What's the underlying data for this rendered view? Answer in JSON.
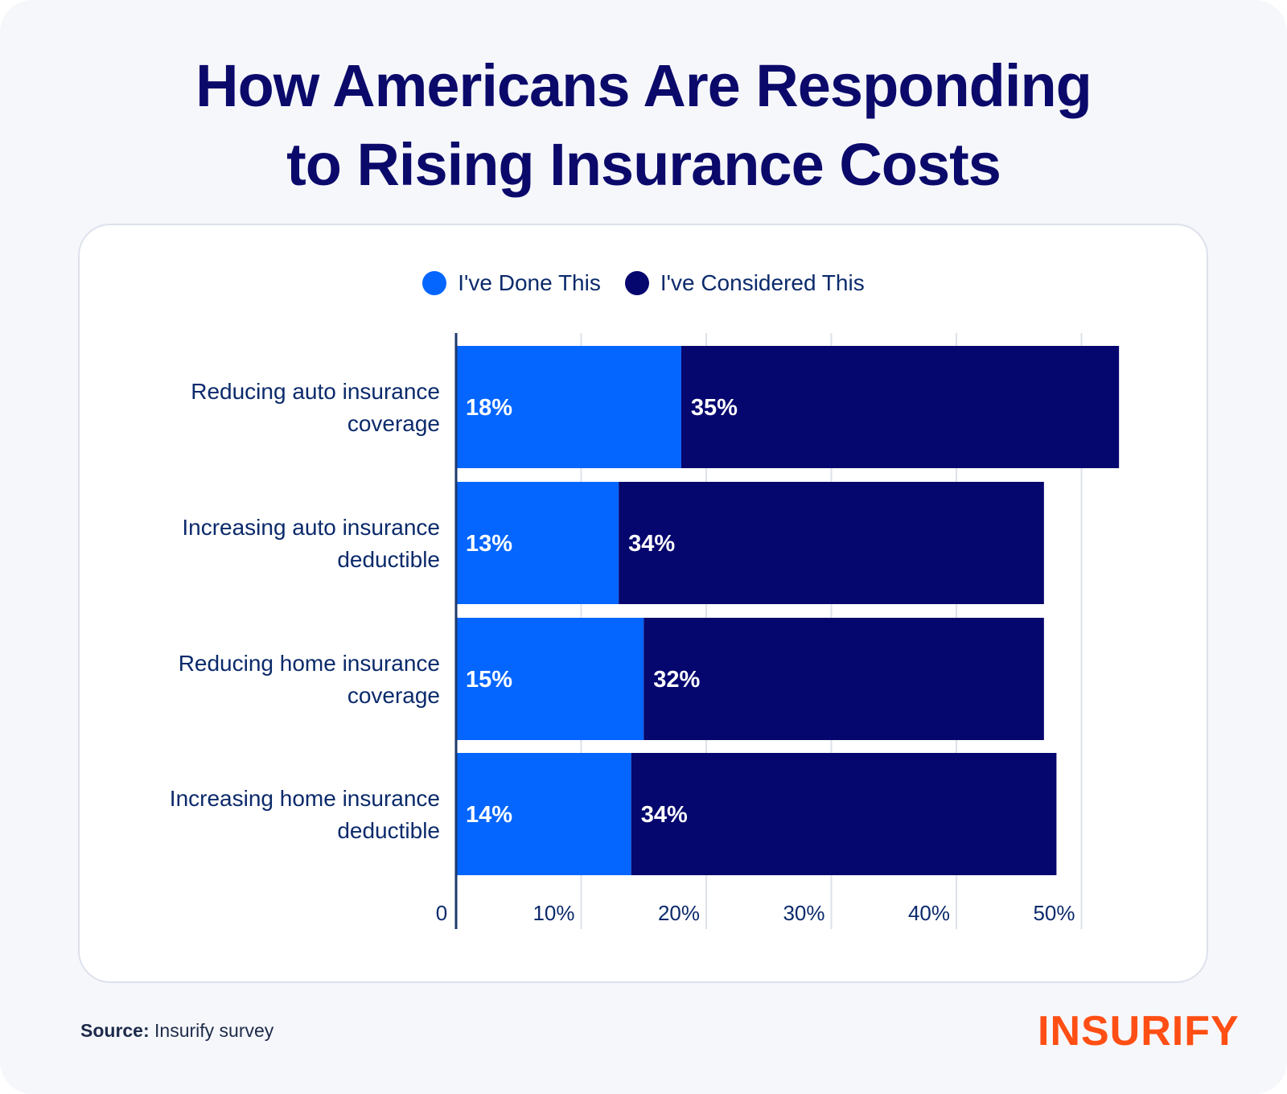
{
  "title_line1": "How Americans Are Responding",
  "title_line2": "to Rising Insurance Costs",
  "source_label": "Source:",
  "source_text": "Insurify survey",
  "logo": "INSURIFY",
  "chart_data": {
    "type": "bar",
    "orientation": "horizontal",
    "stacked": true,
    "categories": [
      "Reducing auto insurance coverage",
      "Increasing auto insurance deductible",
      "Reducing home insurance coverage",
      "Increasing home insurance deductible"
    ],
    "category_lines": [
      [
        "Reducing auto insurance",
        "coverage"
      ],
      [
        "Increasing auto insurance",
        "deductible"
      ],
      [
        "Reducing home insurance",
        "coverage"
      ],
      [
        "Increasing home insurance",
        "deductible"
      ]
    ],
    "series": [
      {
        "name": "I've Done This",
        "color": "#0466ff",
        "values": [
          18,
          13,
          15,
          14
        ]
      },
      {
        "name": "I've Considered This",
        "color": "#05066e",
        "values": [
          35,
          34,
          32,
          34
        ]
      }
    ],
    "xlim": [
      0,
      55
    ],
    "ticks": [
      0,
      10,
      20,
      30,
      40,
      50
    ],
    "tick_labels": [
      "0",
      "10%",
      "20%",
      "30%",
      "40%",
      "50%"
    ],
    "legend_position": "top-center",
    "grid": true
  }
}
